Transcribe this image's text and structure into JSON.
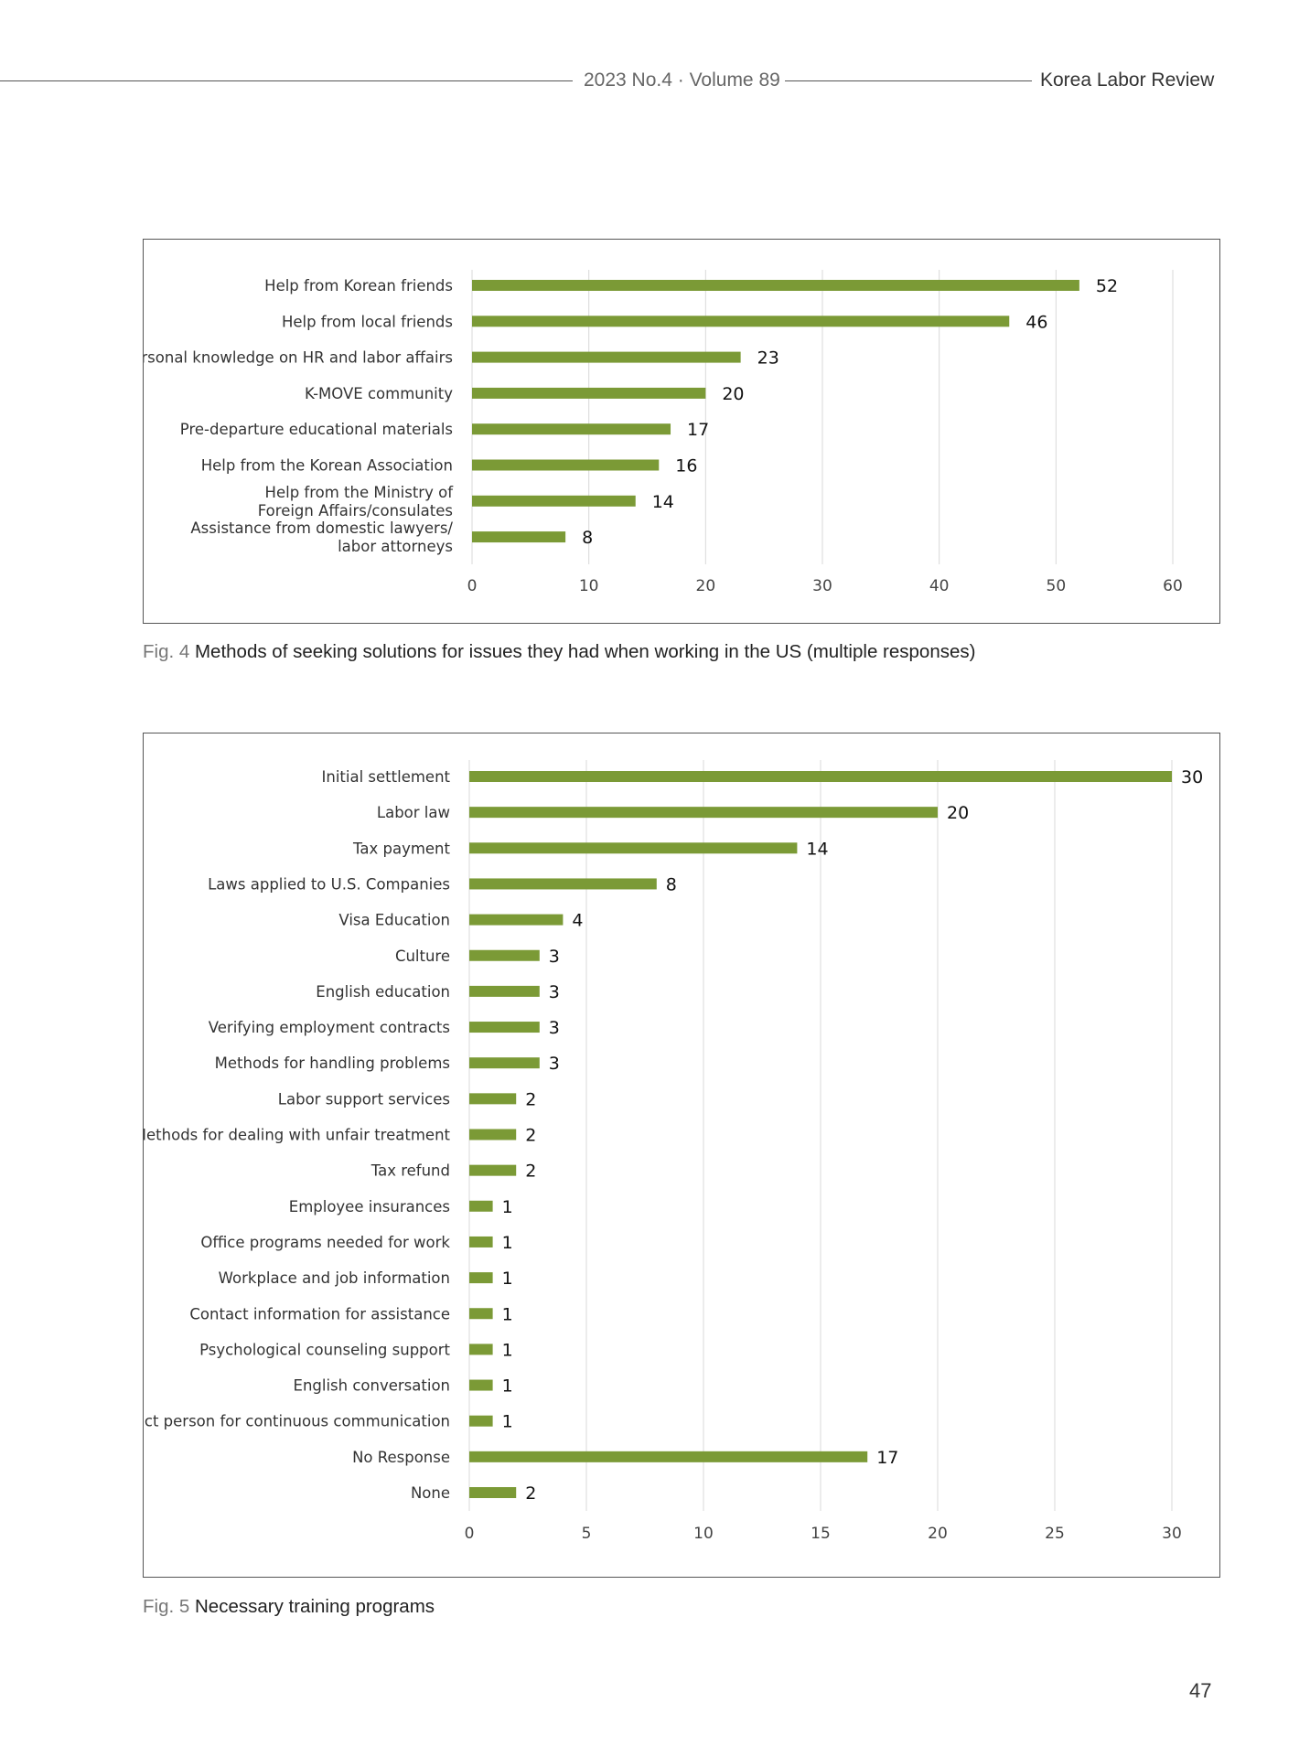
{
  "header": {
    "issue": "2023 No.4 · Volume 89",
    "journal": "Korea Labor Review"
  },
  "chart_data": [
    {
      "type": "bar",
      "orientation": "horizontal",
      "categories": [
        "Help from Korean friends",
        "Help from local friends",
        "Personal knowledge on HR and labor affairs",
        "K-MOVE community",
        "Pre-departure educational materials",
        "Help from the Korean Association",
        "Help from the Ministry of\nForeign Affairs/consulates",
        "Assistance from domestic lawyers/\nlabor attorneys"
      ],
      "values": [
        52,
        46,
        23,
        20,
        17,
        16,
        14,
        8
      ],
      "xlim": [
        0,
        60
      ],
      "ticks": [
        0,
        10,
        20,
        30,
        40,
        50,
        60
      ],
      "grid": true,
      "bar_color": "#7b9a36",
      "data_labels": true
    },
    {
      "type": "bar",
      "orientation": "horizontal",
      "categories": [
        "Initial settlement",
        "Labor law",
        "Tax payment",
        "Laws applied to U.S. Companies",
        "Visa Education",
        "Culture",
        "English education",
        "Verifying employment contracts",
        "Methods for handling problems",
        "Labor support services",
        "Methods for dealing with unfair treatment",
        "Tax refund",
        "Employee insurances",
        "Office programs needed for work",
        "Workplace and job information",
        "Contact information for assistance",
        "Psychological counseling support",
        "English conversation",
        "Contact person for continuous communication",
        "No Response",
        "None"
      ],
      "values": [
        30,
        20,
        14,
        8,
        4,
        3,
        3,
        3,
        3,
        2,
        2,
        2,
        1,
        1,
        1,
        1,
        1,
        1,
        1,
        17,
        2
      ],
      "xlim": [
        0,
        30
      ],
      "ticks": [
        0,
        5,
        10,
        15,
        20,
        25,
        30
      ],
      "grid": true,
      "bar_color": "#7b9a36",
      "data_labels": true
    }
  ],
  "captions": [
    {
      "number": "Fig. 4",
      "text": "Methods of seeking solutions for issues they had when working in the US (multiple responses)"
    },
    {
      "number": "Fig. 5",
      "text": "Necessary training programs"
    }
  ],
  "page_number": "47"
}
